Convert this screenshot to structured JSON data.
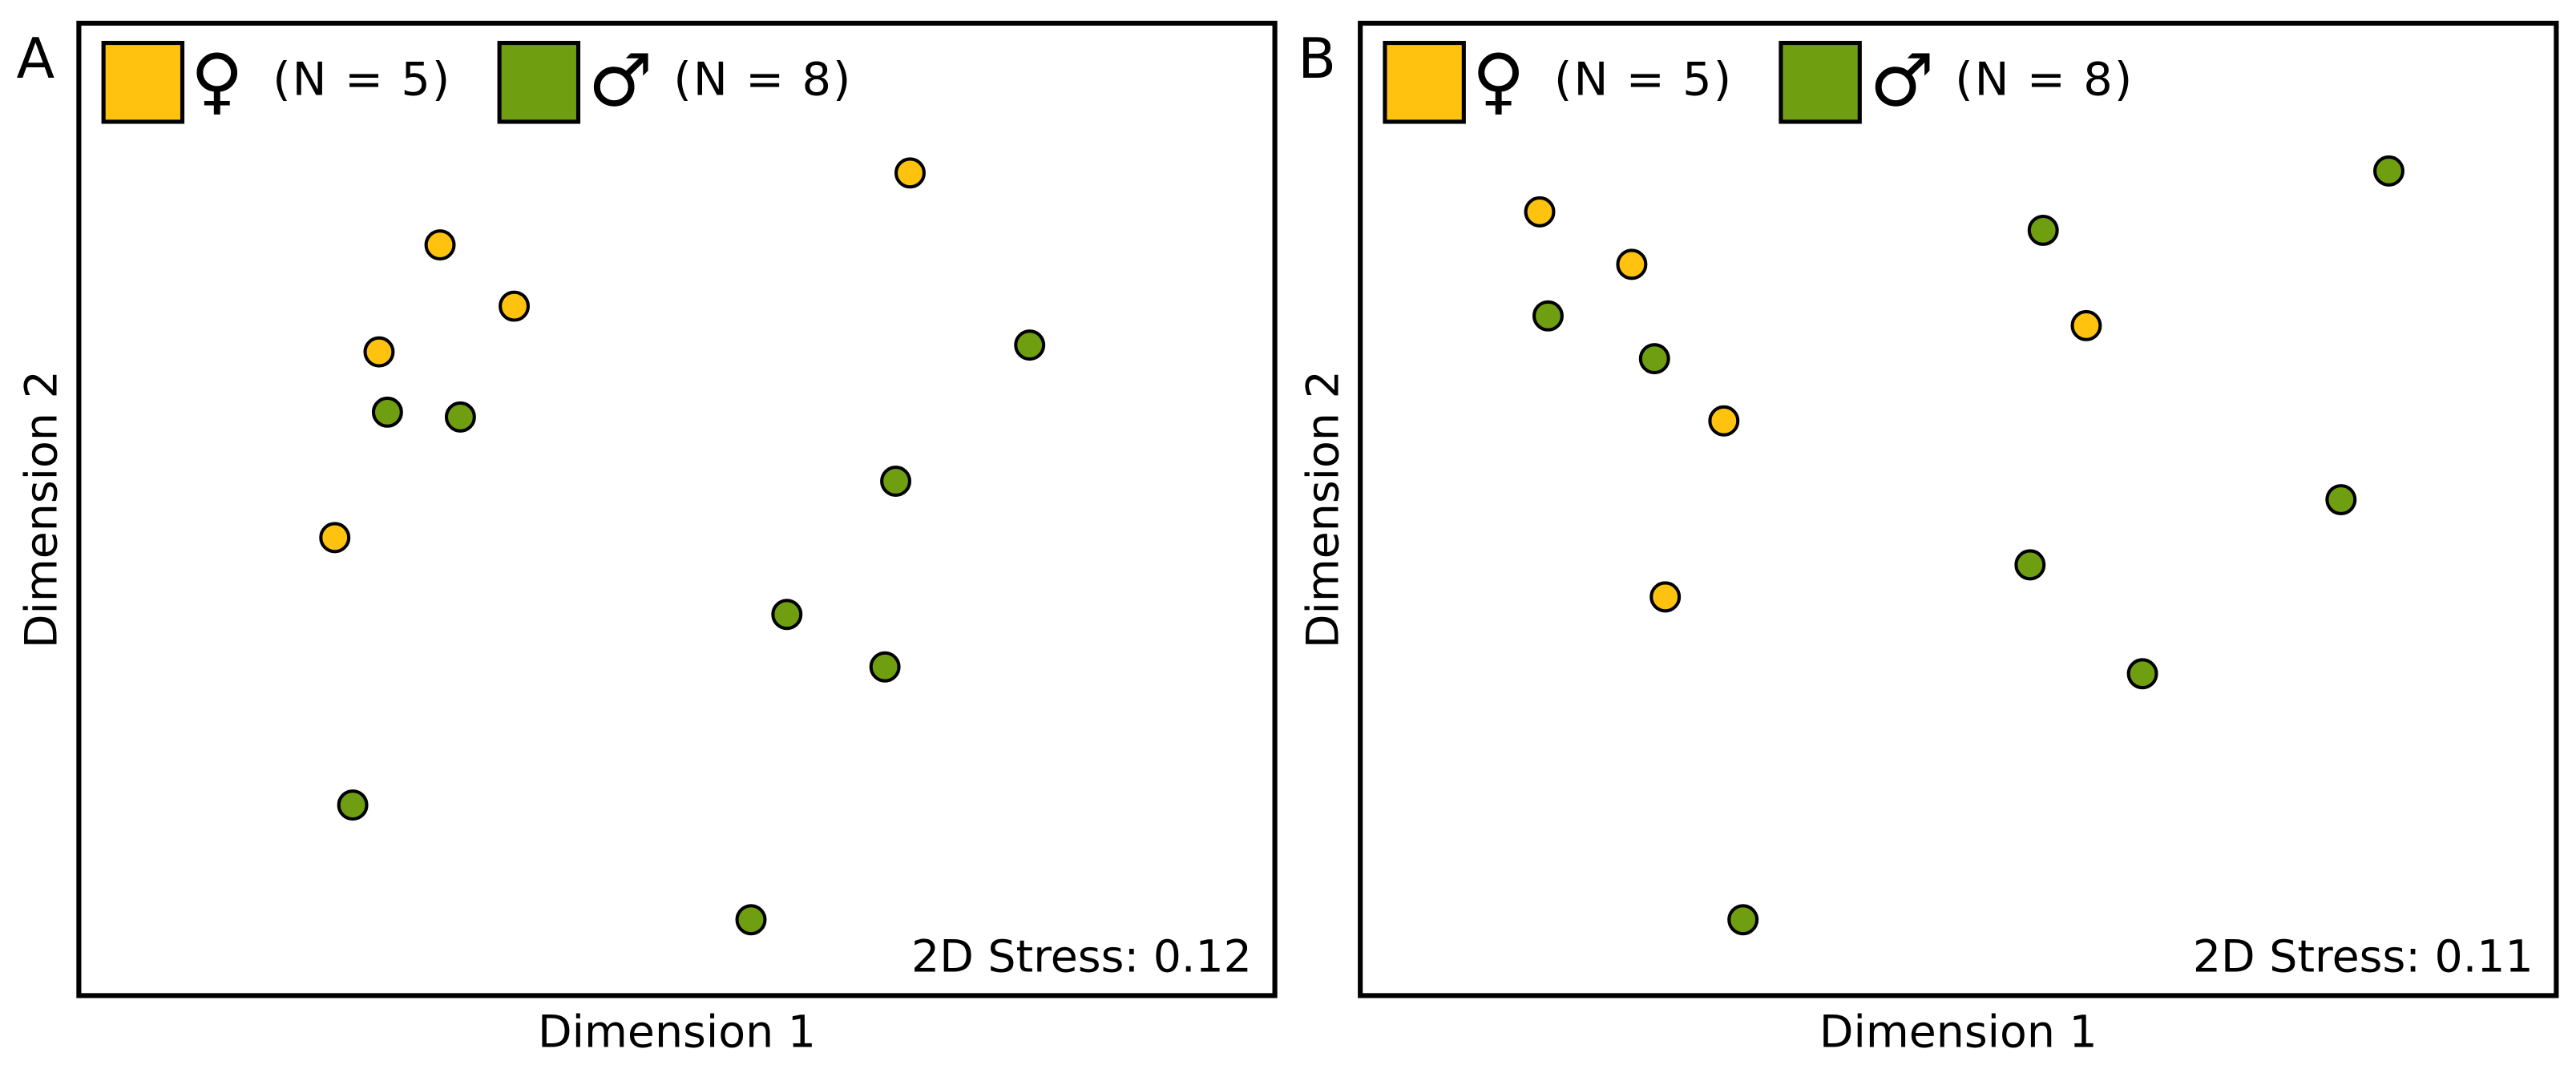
{
  "chart_data": [
    {
      "type": "scatter",
      "panel": "A",
      "xlabel": "Dimension 1",
      "ylabel": "Dimension 2",
      "annotation": "2D Stress: 0.12",
      "xlim": [
        0,
        100
      ],
      "ylim": [
        0,
        100
      ],
      "series": [
        {
          "name": "♀",
          "count": "(N = 5)",
          "color": "#ffc20e",
          "x": [
            69.5,
            30.2,
            36.4,
            25.1,
            21.4
          ],
          "values": [
            84.6,
            77.2,
            70.9,
            66.2,
            47.1
          ]
        },
        {
          "name": "♂",
          "count": "(N = 8)",
          "color": "#6f9e10",
          "x": [
            79.5,
            25.8,
            31.9,
            68.3,
            59.2,
            67.4,
            22.9,
            56.2
          ],
          "values": [
            66.9,
            60.0,
            59.5,
            52.9,
            39.2,
            33.8,
            19.6,
            7.8
          ]
        }
      ]
    },
    {
      "type": "scatter",
      "panel": "B",
      "xlabel": "Dimension 1",
      "ylabel": "Dimension 2",
      "annotation": "2D Stress: 0.11",
      "xlim": [
        0,
        100
      ],
      "ylim": [
        0,
        100
      ],
      "series": [
        {
          "name": "♀",
          "count": "(N = 5)",
          "color": "#ffc20e",
          "x": [
            15.0,
            22.7,
            60.7,
            30.4,
            25.5
          ],
          "values": [
            80.6,
            75.2,
            68.9,
            59.1,
            41.0
          ]
        },
        {
          "name": "♂",
          "count": "(N = 8)",
          "color": "#6f9e10",
          "x": [
            86.0,
            57.1,
            15.7,
            24.6,
            82.0,
            56.0,
            65.4,
            32.0
          ],
          "values": [
            84.8,
            78.7,
            69.9,
            65.5,
            51.0,
            44.3,
            33.1,
            7.8
          ]
        }
      ]
    }
  ]
}
